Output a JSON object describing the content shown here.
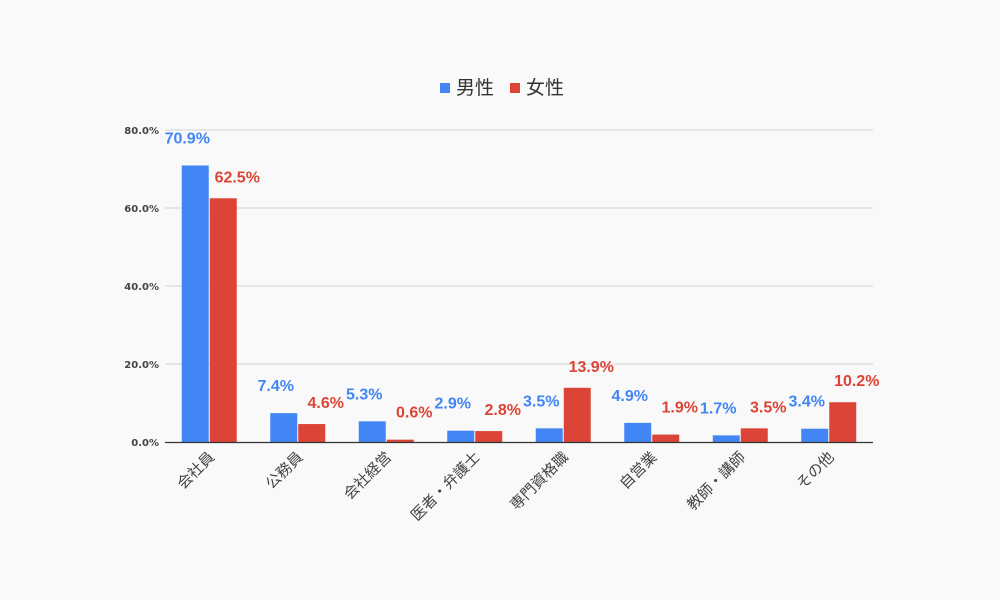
{
  "chart_data": {
    "type": "bar",
    "title": "",
    "xlabel": "",
    "ylabel": "",
    "ylim": [
      0,
      80
    ],
    "yticks": [
      "0.0%",
      "20.0%",
      "40.0%",
      "60.0%",
      "80.0%"
    ],
    "grid": true,
    "legend_position": "top-center",
    "categories": [
      "会社員",
      "公務員",
      "会社経営",
      "医者・弁護士",
      "専門資格職",
      "自営業",
      "教師・講師",
      "その他"
    ],
    "series": [
      {
        "name": "男性",
        "color": "#4285f4",
        "values": [
          70.9,
          7.4,
          5.3,
          2.9,
          3.5,
          4.9,
          1.7,
          3.4
        ],
        "labels": [
          "70.9%",
          "7.4%",
          "5.3%",
          "2.9%",
          "3.5%",
          "4.9%",
          "1.7%",
          "3.4%"
        ]
      },
      {
        "name": "女性",
        "color": "#db4437",
        "values": [
          62.5,
          4.6,
          0.6,
          2.8,
          13.9,
          1.9,
          3.5,
          10.2
        ],
        "labels": [
          "62.5%",
          "4.6%",
          "0.6%",
          "2.8%",
          "13.9%",
          "1.9%",
          "3.5%",
          "10.2%"
        ]
      }
    ]
  }
}
